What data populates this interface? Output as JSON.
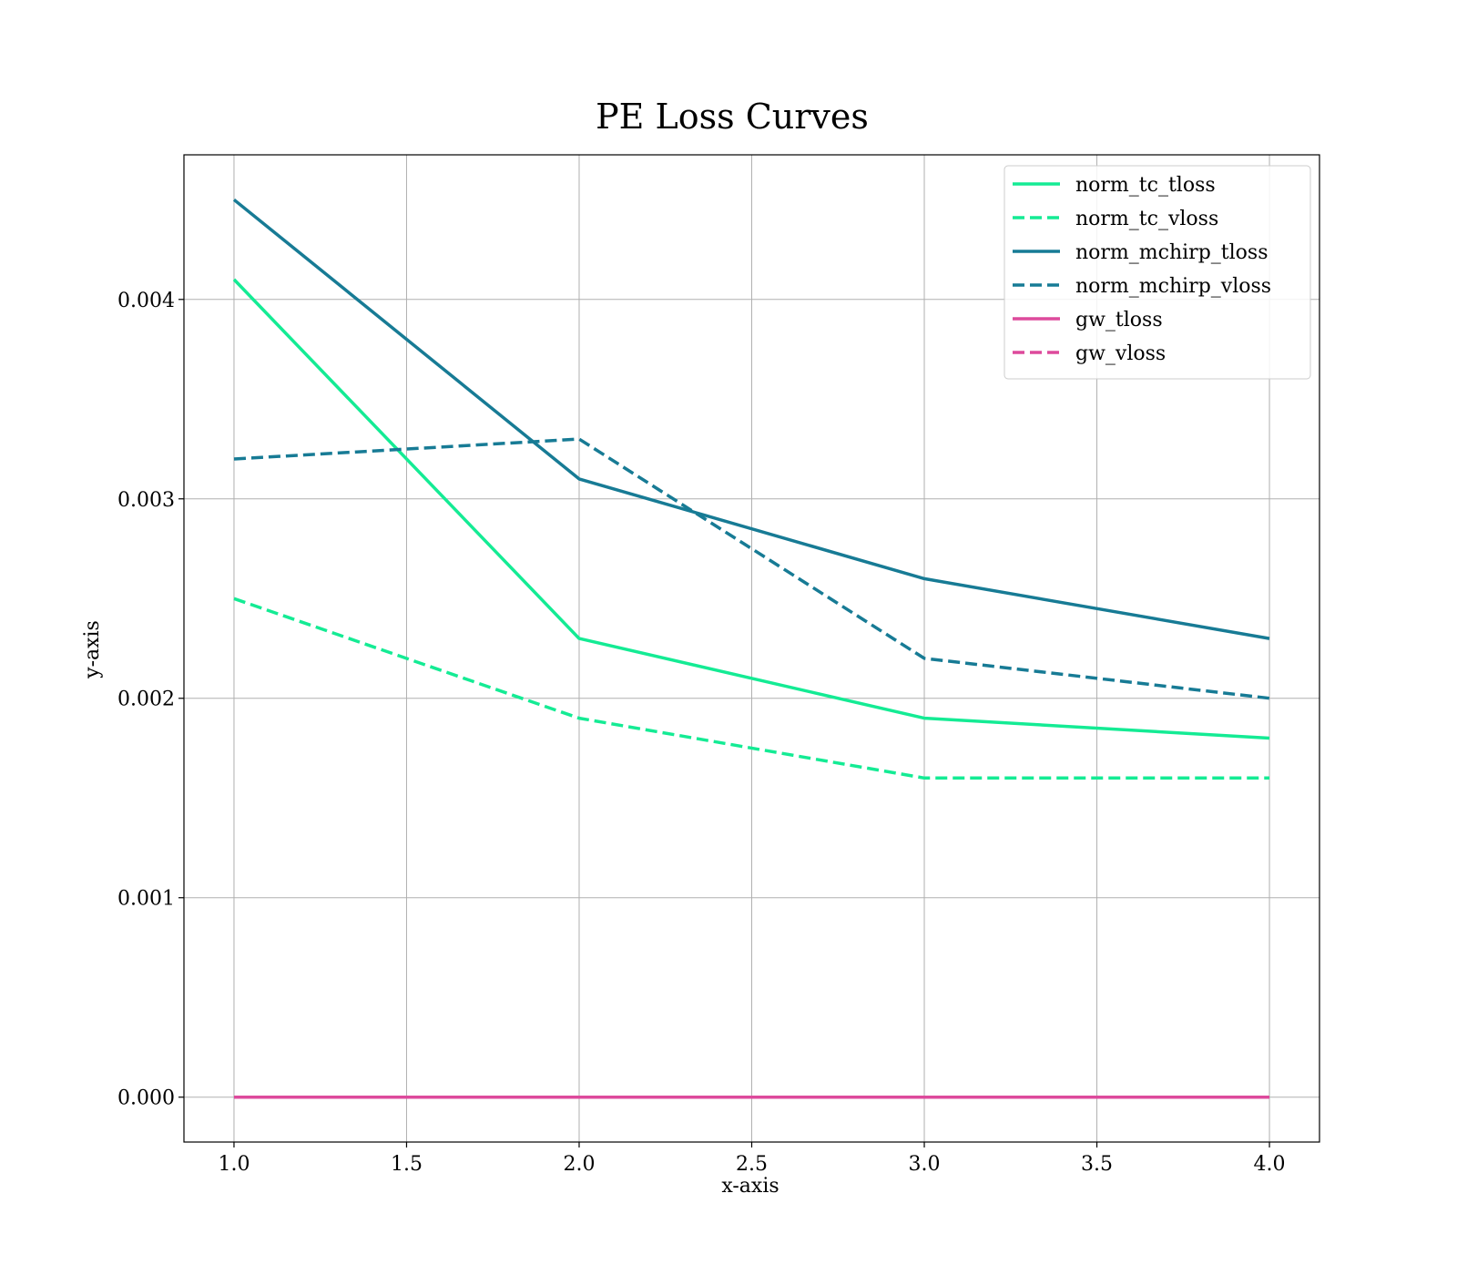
{
  "chart_data": {
    "type": "line",
    "title": "PE Loss Curves",
    "xlabel": "x-axis",
    "ylabel": "y-axis",
    "xlim": [
      0.855,
      4.145
    ],
    "ylim": [
      -0.000225,
      0.004725
    ],
    "x_ticks": [
      1.0,
      1.5,
      2.0,
      2.5,
      3.0,
      3.5,
      4.0
    ],
    "x_tick_labels": [
      "1.0",
      "1.5",
      "2.0",
      "2.5",
      "3.0",
      "3.5",
      "4.0"
    ],
    "y_ticks": [
      0.0,
      0.001,
      0.002,
      0.003,
      0.004
    ],
    "y_tick_labels": [
      "0.000",
      "0.001",
      "0.002",
      "0.003",
      "0.004"
    ],
    "grid": true,
    "legend_position": "top-right",
    "x": [
      1,
      2,
      3,
      4
    ],
    "series": [
      {
        "name": "norm_tc_tloss",
        "values": [
          0.0041,
          0.0023,
          0.0019,
          0.0018
        ],
        "color": "#14eb94",
        "dash": "solid"
      },
      {
        "name": "norm_tc_vloss",
        "values": [
          0.0025,
          0.0019,
          0.0016,
          0.0016
        ],
        "color": "#14eb94",
        "dash": "dashed"
      },
      {
        "name": "norm_mchirp_tloss",
        "values": [
          0.0045,
          0.0031,
          0.0026,
          0.0023
        ],
        "color": "#177b95",
        "dash": "solid"
      },
      {
        "name": "norm_mchirp_vloss",
        "values": [
          0.0032,
          0.0033,
          0.0022,
          0.002
        ],
        "color": "#177b95",
        "dash": "dashed"
      },
      {
        "name": "gw_tloss",
        "values": [
          0.0,
          0.0,
          0.0,
          0.0
        ],
        "color": "#dd4a9c",
        "dash": "solid"
      },
      {
        "name": "gw_vloss",
        "values": [
          0.0,
          0.0,
          0.0,
          0.0
        ],
        "color": "#dd4a9c",
        "dash": "dashed"
      }
    ]
  }
}
